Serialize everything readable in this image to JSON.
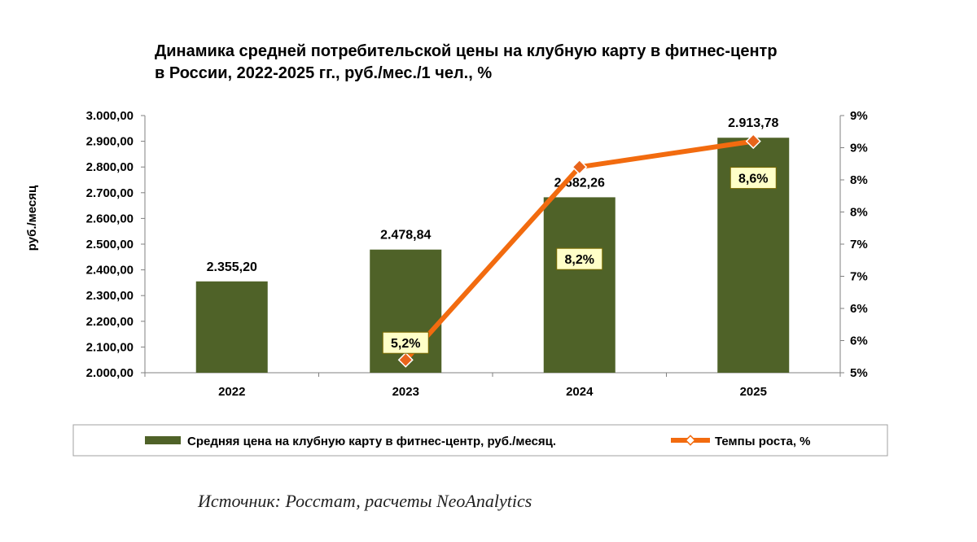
{
  "title_lines": [
    "Динамика средней потребительской цены на клубную карту в фитнес-центр",
    "в России, 2022-2025 гг., руб./мес./1 чел., %"
  ],
  "chart_data": {
    "type": "bar+line",
    "categories": [
      "2022",
      "2023",
      "2024",
      "2025"
    ],
    "series": [
      {
        "name": "Средняя цена на клубную карту в фитнес-центр, руб./месяц.",
        "type": "bar",
        "axis": "left",
        "color": "#4f6228",
        "values": [
          2355.2,
          2478.84,
          2682.26,
          2913.78
        ],
        "labels": [
          "2.355,20",
          "2.478,84",
          "2.682,26",
          "2.913,78"
        ]
      },
      {
        "name": "Темпы роста, %",
        "type": "line",
        "axis": "right",
        "color": "#f26b0f",
        "marker_color": "#e8641b",
        "values": [
          null,
          5.2,
          8.2,
          8.6
        ],
        "labels": [
          "",
          "5,2%",
          "8,2%",
          "8,6%"
        ]
      }
    ],
    "ylabel": "руб./месяц",
    "ylim": [
      2000,
      3000
    ],
    "y_ticks": [
      "2.000,00",
      "2.100,00",
      "2.200,00",
      "2.300,00",
      "2.400,00",
      "2.500,00",
      "2.600,00",
      "2.700,00",
      "2.800,00",
      "2.900,00",
      "3.000,00"
    ],
    "y2lim": [
      5,
      9
    ],
    "y2_ticks": [
      "5%",
      "6%",
      "6%",
      "7%",
      "7%",
      "8%",
      "8%",
      "9%",
      "9%"
    ],
    "legend_position": "bottom"
  },
  "source": "Источник: Росстат, расчеты NeoAnalytics"
}
